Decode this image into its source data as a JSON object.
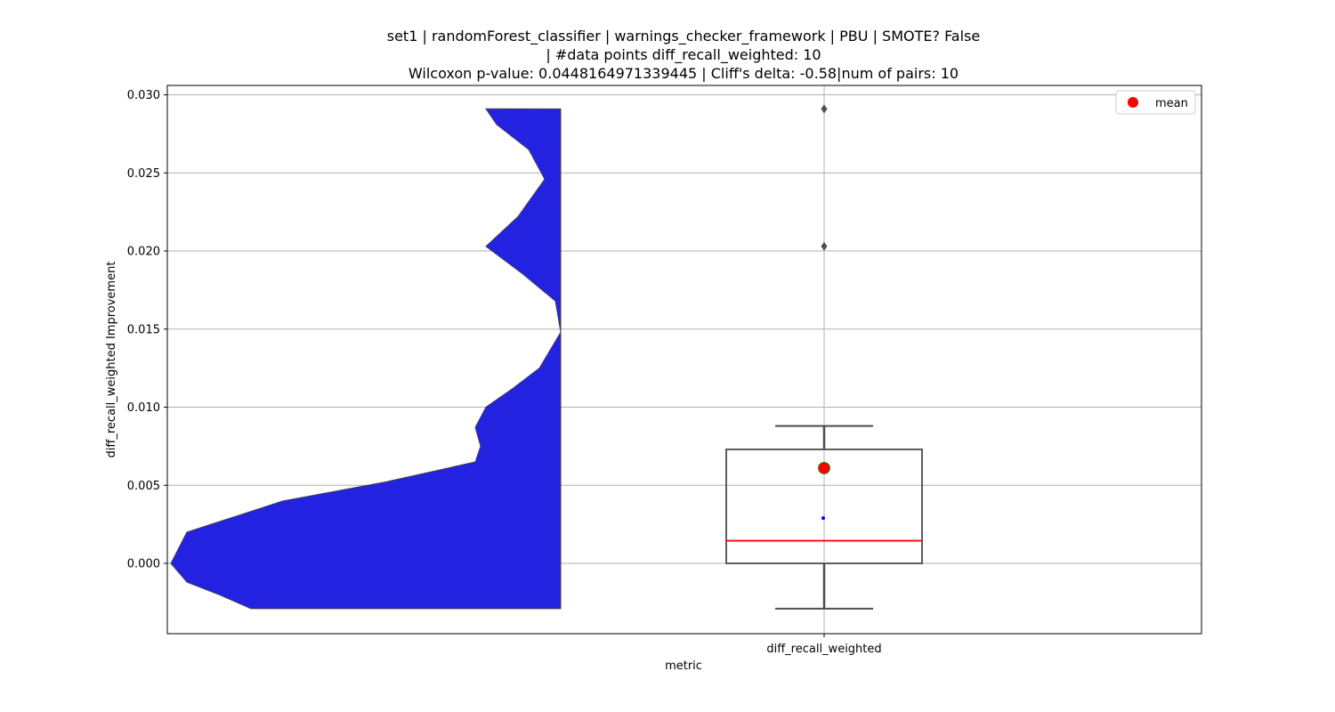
{
  "chart_data": {
    "type": "violin+box",
    "title_lines": [
      "set1 | randomForest_classifier | warnings_checker_framework | PBU | SMOTE? False",
      "| #data points diff_recall_weighted: 10",
      "Wilcoxon p-value: 0.0448164971339445 | Cliff's delta: -0.58|num of pairs: 10"
    ],
    "xlabel": "metric",
    "ylabel": "diff_recall_weighted Improvement",
    "categories": [
      "diff_recall_weighted"
    ],
    "ylim": [
      -0.0045,
      0.0306
    ],
    "yticks": [
      0.0,
      0.005,
      0.01,
      0.015,
      0.02,
      0.025,
      0.03
    ],
    "ytick_labels": [
      "0.000",
      "0.005",
      "0.010",
      "0.015",
      "0.020",
      "0.025",
      "0.030"
    ],
    "grid": true,
    "legend": {
      "position": "top-right",
      "label": "mean",
      "marker_color": "#ff0000"
    },
    "box": {
      "whisker_low": -0.0029,
      "q1": 0.0,
      "median": 0.00145,
      "q3": 0.0073,
      "whisker_high": 0.0088,
      "mean": 0.0061,
      "outliers": [
        0.0203,
        0.0291
      ],
      "points": [
        0.0029
      ],
      "box_edge_color": "#4d4d4d",
      "median_color": "#ff0000",
      "mean_color": "#ff0000",
      "mean_edge_color": "#228b22",
      "point_color": "#0000ff"
    },
    "violin": {
      "color": "#2222e0",
      "edge_color": "#444444",
      "y_range": [
        -0.0029,
        0.0291
      ],
      "profile_note": "half-violin, flat right edge, density largest at bottom",
      "profile": [
        [
          -0.0029,
          0.58
        ],
        [
          -0.002,
          0.64
        ],
        [
          -0.0012,
          0.7
        ],
        [
          0.0,
          0.73
        ],
        [
          0.002,
          0.7
        ],
        [
          0.004,
          0.52
        ],
        [
          0.0052,
          0.33
        ],
        [
          0.0065,
          0.16
        ],
        [
          0.0075,
          0.15
        ],
        [
          0.0087,
          0.16
        ],
        [
          0.01,
          0.14
        ],
        [
          0.0112,
          0.09
        ],
        [
          0.0125,
          0.04
        ],
        [
          0.0148,
          0.0
        ],
        [
          0.0168,
          0.01
        ],
        [
          0.0185,
          0.07
        ],
        [
          0.0203,
          0.14
        ],
        [
          0.0222,
          0.08
        ],
        [
          0.0246,
          0.03
        ],
        [
          0.0265,
          0.06
        ],
        [
          0.0281,
          0.12
        ],
        [
          0.0291,
          0.14
        ]
      ]
    }
  }
}
